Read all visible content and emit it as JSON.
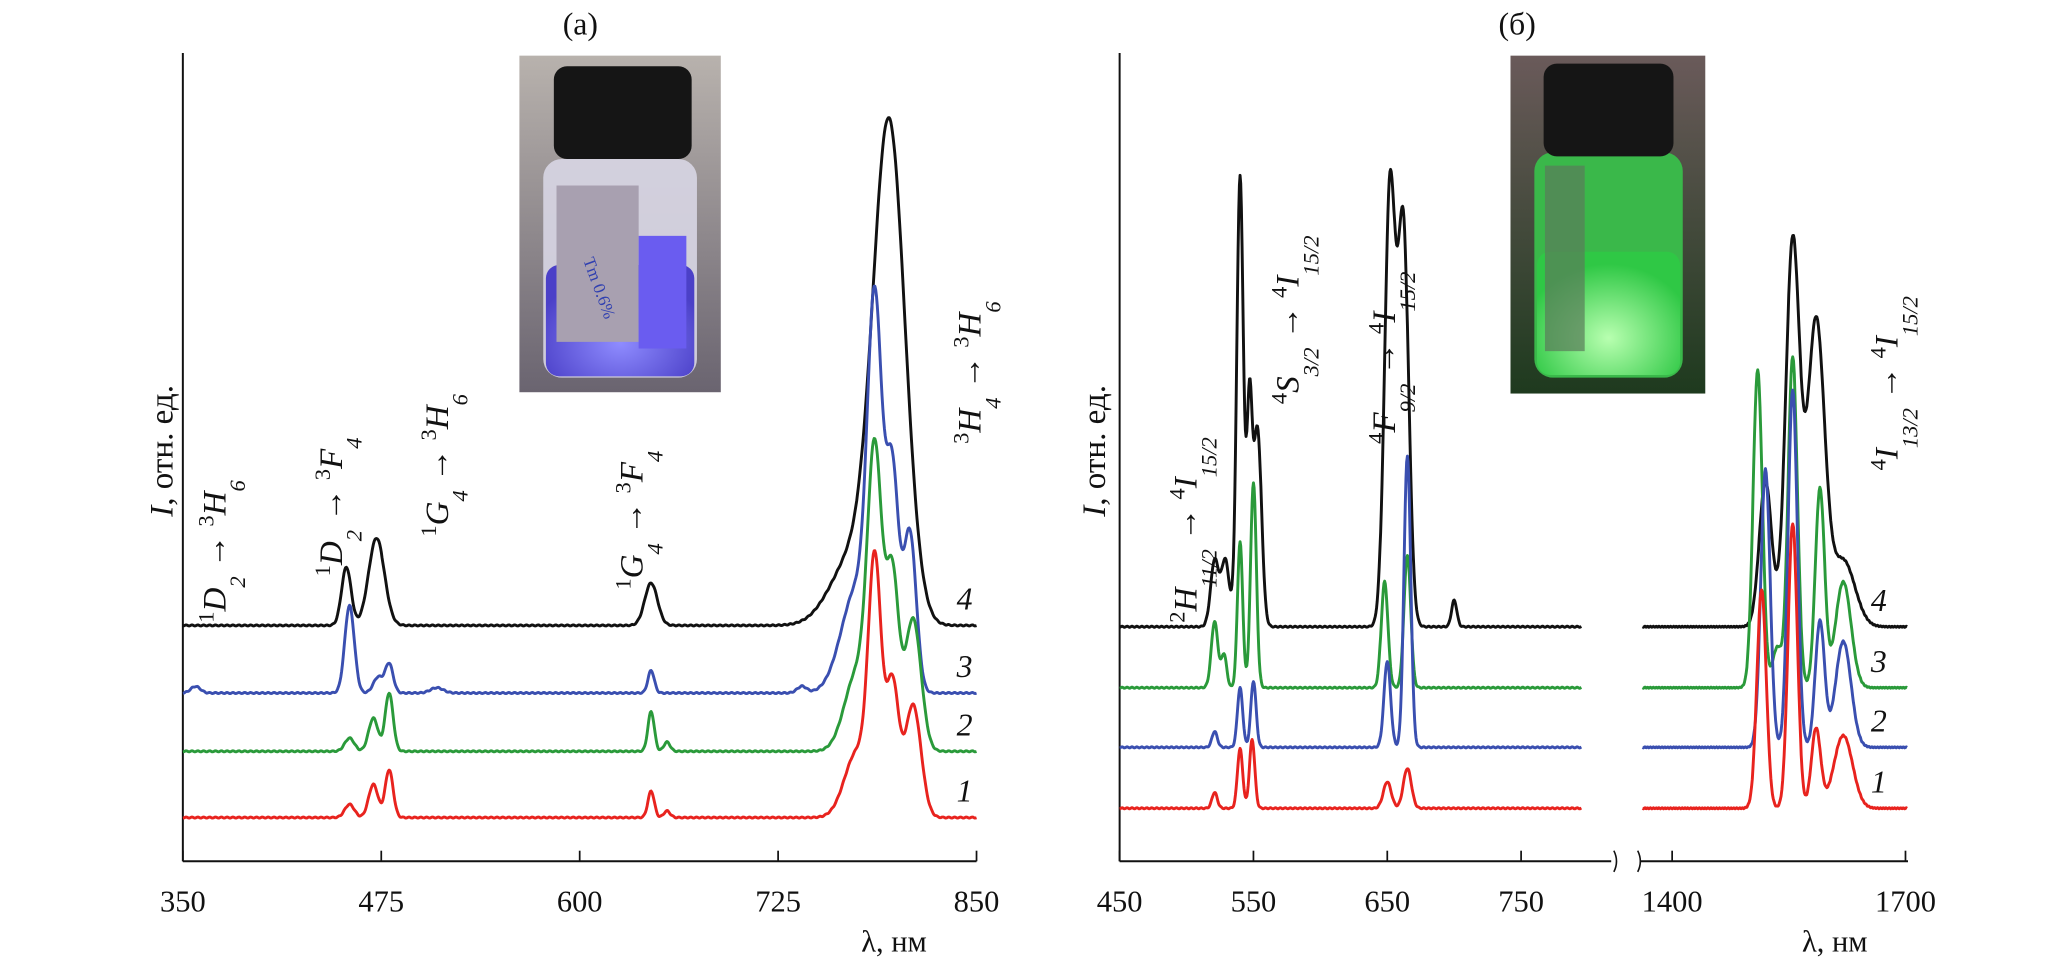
{
  "chart_data": [
    {
      "type": "line",
      "title": "(a)",
      "xlabel": "λ, нм",
      "ylabel_italic": "I",
      "ylabel": ", отн. ед.",
      "xlim": [
        350,
        850
      ],
      "ylim": [
        0,
        6.1
      ],
      "xticks": [
        "350",
        "475",
        "600",
        "725",
        "850"
      ],
      "xtick_values": [
        350,
        475,
        600,
        725,
        850
      ],
      "grid": false,
      "series": [
        {
          "name": "4",
          "color": "#111111",
          "offset": 1.78,
          "peaks": [
            [
              453,
              0.44,
              3
            ],
            [
              472,
              0.66,
              5
            ],
            [
              645,
              0.32,
              4
            ],
            [
              795,
              3.7,
              10
            ],
            [
              772,
              0.5,
              14
            ]
          ]
        },
        {
          "name": "3",
          "color": "#3a4fb0",
          "offset": 1.27,
          "peaks": [
            [
              358,
              0.05,
              3
            ],
            [
              455,
              0.66,
              3
            ],
            [
              473,
              0.12,
              3
            ],
            [
              480,
              0.22,
              2.5
            ],
            [
              510,
              0.04,
              4
            ],
            [
              645,
              0.17,
              2
            ],
            [
              740,
              0.05,
              3
            ],
            [
              786,
              2.6,
              4.5
            ],
            [
              797,
              1.6,
              4
            ],
            [
              808,
              1.2,
              4
            ],
            [
              775,
              0.8,
              10
            ]
          ]
        },
        {
          "name": "2",
          "color": "#2a9a3a",
          "offset": 0.83,
          "peaks": [
            [
              455,
              0.1,
              3
            ],
            [
              470,
              0.25,
              3
            ],
            [
              480,
              0.44,
              2.5
            ],
            [
              645,
              0.3,
              2
            ],
            [
              655,
              0.07,
              2
            ],
            [
              786,
              2.1,
              4.5
            ],
            [
              797,
              1.3,
              4
            ],
            [
              810,
              1.0,
              5
            ],
            [
              775,
              0.6,
              8
            ]
          ]
        },
        {
          "name": "1",
          "color": "#e8231e",
          "offset": 0.33,
          "peaks": [
            [
              455,
              0.1,
              3
            ],
            [
              470,
              0.25,
              3
            ],
            [
              480,
              0.36,
              2.5
            ],
            [
              645,
              0.2,
              2
            ],
            [
              655,
              0.05,
              2
            ],
            [
              786,
              1.8,
              4
            ],
            [
              797,
              1.0,
              4
            ],
            [
              810,
              0.85,
              5
            ],
            [
              775,
              0.5,
              8
            ]
          ]
        }
      ],
      "annotations": [
        {
          "parts": [
            [
              "1",
              "sup"
            ],
            [
              "D",
              ""
            ],
            [
              "2",
              "sub"
            ],
            [
              " → ",
              "n"
            ],
            [
              "3",
              "sup"
            ],
            [
              "H",
              ""
            ],
            [
              "6",
              "sub"
            ]
          ]
        },
        {
          "parts": [
            [
              "1",
              "sup"
            ],
            [
              "D",
              ""
            ],
            [
              "2",
              "sub"
            ],
            [
              " → ",
              "n"
            ],
            [
              "3",
              "sup"
            ],
            [
              "F",
              ""
            ],
            [
              "4",
              "sub"
            ]
          ]
        },
        {
          "parts": [
            [
              "1",
              "sup"
            ],
            [
              "G",
              ""
            ],
            [
              "4",
              "sub"
            ],
            [
              " → ",
              "n"
            ],
            [
              "3",
              "sup"
            ],
            [
              "H",
              ""
            ],
            [
              "6",
              "sub"
            ]
          ]
        },
        {
          "parts": [
            [
              "1",
              "sup"
            ],
            [
              "G",
              ""
            ],
            [
              "4",
              "sub"
            ],
            [
              " → ",
              "n"
            ],
            [
              "3",
              "sup"
            ],
            [
              "F",
              ""
            ],
            [
              "4",
              "sub"
            ]
          ]
        },
        {
          "parts": [
            [
              "3",
              "sup"
            ],
            [
              "H",
              ""
            ],
            [
              "4",
              "sub"
            ],
            [
              " → ",
              "n"
            ],
            [
              "3",
              "sup"
            ],
            [
              "H",
              ""
            ],
            [
              "6",
              "sub"
            ]
          ]
        }
      ],
      "inset": {
        "glow_color": "#5a4fe0",
        "label_text": "Tm 0.6%"
      }
    },
    {
      "type": "line",
      "title": "(б)",
      "xlabel": "λ, нм",
      "ylabel_italic": "I",
      "ylabel": ", отн. ед.",
      "xlim": [
        450,
        1700
      ],
      "axis_break": [
        795,
        1362
      ],
      "ylim": [
        0,
        6.1
      ],
      "xticks": [
        "450",
        "550",
        "650",
        "750",
        "1400",
        "1700"
      ],
      "xtick_values": [
        450,
        550,
        650,
        750,
        1400,
        1700
      ],
      "grid": false,
      "series": [
        {
          "name": "4",
          "color": "#111111",
          "offset": 1.77,
          "peaks": [
            [
              521,
              0.5,
              3
            ],
            [
              529,
              0.5,
              3
            ],
            [
              540,
              3.4,
              2.5
            ],
            [
              547,
              1.6,
              2
            ],
            [
              553,
              1.5,
              3
            ],
            [
              652,
              3.3,
              4
            ],
            [
              662,
              3.0,
              4
            ],
            [
              700,
              0.2,
              2
            ],
            [
              1555,
              2.9,
              9
            ],
            [
              1585,
              2.3,
              11
            ],
            [
              1520,
              1.1,
              8
            ],
            [
              1620,
              0.5,
              15
            ]
          ]
        },
        {
          "name": "3",
          "color": "#2a9a3a",
          "offset": 1.31,
          "peaks": [
            [
              521,
              0.5,
              2.5
            ],
            [
              528,
              0.25,
              2
            ],
            [
              540,
              1.1,
              2
            ],
            [
              550,
              1.55,
              2.2
            ],
            [
              648,
              0.8,
              2.5
            ],
            [
              665,
              1.0,
              2.5
            ],
            [
              1510,
              2.4,
              6
            ],
            [
              1555,
              2.5,
              6
            ],
            [
              1590,
              1.5,
              6
            ],
            [
              1620,
              0.8,
              10
            ],
            [
              1535,
              0.3,
              6
            ]
          ]
        },
        {
          "name": "2",
          "color": "#3a4fb0",
          "offset": 0.86,
          "peaks": [
            [
              521,
              0.12,
              2
            ],
            [
              540,
              0.45,
              2
            ],
            [
              550,
              0.5,
              2
            ],
            [
              650,
              0.65,
              2.5
            ],
            [
              665,
              2.2,
              2.5
            ],
            [
              1520,
              2.1,
              6
            ],
            [
              1555,
              2.7,
              6
            ],
            [
              1590,
              0.95,
              6
            ],
            [
              1620,
              0.8,
              10
            ]
          ]
        },
        {
          "name": "1",
          "color": "#e8231e",
          "offset": 0.4,
          "peaks": [
            [
              521,
              0.12,
              2
            ],
            [
              540,
              0.45,
              2
            ],
            [
              549,
              0.52,
              2
            ],
            [
              650,
              0.2,
              3
            ],
            [
              665,
              0.3,
              3
            ],
            [
              1515,
              1.65,
              6
            ],
            [
              1555,
              2.15,
              6
            ],
            [
              1585,
              0.6,
              6
            ],
            [
              1620,
              0.55,
              12
            ]
          ]
        }
      ],
      "annotations": [
        {
          "parts": [
            [
              "2",
              "sup"
            ],
            [
              "H",
              ""
            ],
            [
              "11/2",
              "sub"
            ],
            [
              " → ",
              "n"
            ],
            [
              "4",
              "sup"
            ],
            [
              "I",
              ""
            ],
            [
              "15/2",
              "sub"
            ]
          ]
        },
        {
          "parts": [
            [
              "4",
              "sup"
            ],
            [
              "S",
              ""
            ],
            [
              "3/2",
              "sub"
            ],
            [
              " → ",
              "n"
            ],
            [
              "4",
              "sup"
            ],
            [
              "I",
              ""
            ],
            [
              "15/2",
              "sub"
            ]
          ]
        },
        {
          "parts": [
            [
              "4",
              "sup"
            ],
            [
              "F",
              ""
            ],
            [
              "9/2",
              "sub"
            ],
            [
              " → ",
              "n"
            ],
            [
              "4",
              "sup"
            ],
            [
              "I",
              ""
            ],
            [
              "15/2",
              "sub"
            ]
          ]
        },
        {
          "parts": [
            [
              "4",
              "sup"
            ],
            [
              "I",
              ""
            ],
            [
              "13/2",
              "sub"
            ],
            [
              " → ",
              "n"
            ],
            [
              "4",
              "sup"
            ],
            [
              "I",
              ""
            ],
            [
              "15/2",
              "sub"
            ]
          ]
        }
      ],
      "inset": {
        "glow_color": "#3ee060"
      }
    }
  ]
}
